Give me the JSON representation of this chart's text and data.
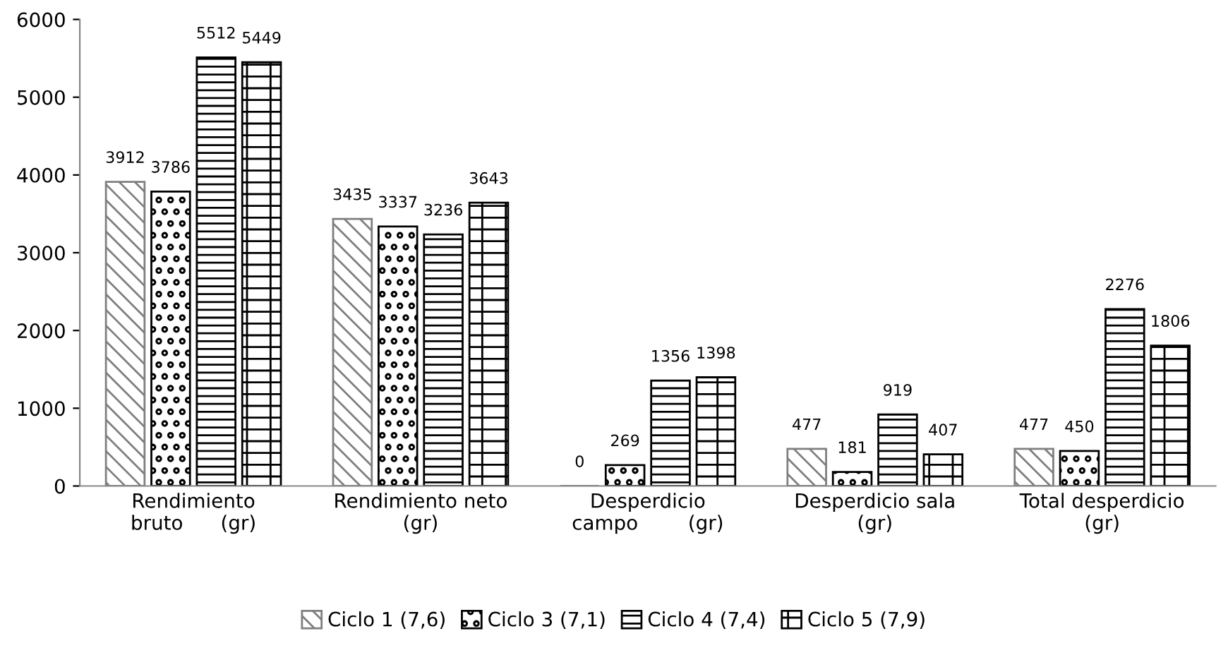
{
  "chart_data": {
    "type": "bar",
    "categories": [
      "Rendimiento\nbruto      (gr)",
      "Rendimiento neto\n(gr)",
      "Desperdicio\ncampo        (gr)",
      "Desperdicio sala\n(gr)",
      "Total desperdicio\n(gr)"
    ],
    "series": [
      {
        "name": "Ciclo 1 (7,6)",
        "color": "#7f7f7f",
        "values": [
          3912,
          3435,
          0,
          477,
          477
        ]
      },
      {
        "name": "Ciclo 3 (7,1)",
        "color": "#000000",
        "values": [
          3786,
          3337,
          269,
          181,
          450
        ]
      },
      {
        "name": "Ciclo 4 (7,4)",
        "color": "#000000",
        "values": [
          5512,
          3236,
          1356,
          919,
          2276
        ]
      },
      {
        "name": "Ciclo 5 (7,9)",
        "color": "#000000",
        "values": [
          5449,
          3643,
          1398,
          407,
          1806
        ]
      }
    ],
    "ylim": [
      0,
      6000
    ],
    "yticks": [
      0,
      1000,
      2000,
      3000,
      4000,
      5000,
      6000
    ],
    "data_labels": true,
    "grid": false,
    "legend": "bottom"
  }
}
